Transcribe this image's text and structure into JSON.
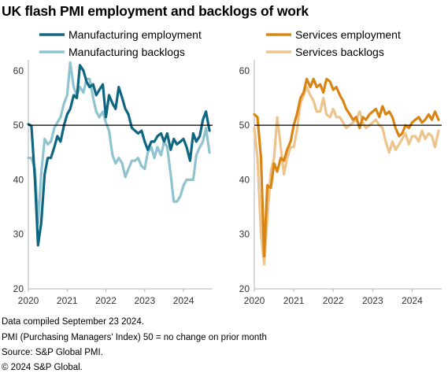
{
  "title": "UK flash PMI employment  and backlogs  of work",
  "footer": {
    "line1": "Data compiled September 23 2024.",
    "line2": "PMI (Purchasing Managers' Index) 50 = no change on prior month",
    "line3": "Source: S&P Global PMI.",
    "line4": "© 2024 S&P Global."
  },
  "colors": {
    "manufacturing_employment": "#0f6680",
    "manufacturing_backlogs": "#8fc3cf",
    "services_employment": "#d98514",
    "services_backlogs": "#ecc48c",
    "reference_line": "#000000",
    "axis": "#b3b3b3"
  },
  "chart_data": [
    {
      "type": "line",
      "ylim": [
        20,
        62
      ],
      "yticks": [
        "20",
        "30",
        "40",
        "50",
        "60"
      ],
      "xlabels": [
        "2020",
        "2021",
        "2022",
        "2023",
        "2024"
      ],
      "xlim": [
        2020,
        2024.75
      ],
      "reference_line": 50,
      "legend": "top",
      "series": [
        {
          "name": "Manufacturing employment",
          "color": "#0f6680",
          "x": [
            2020.0,
            2020.08,
            2020.17,
            2020.25,
            2020.33,
            2020.42,
            2020.5,
            2020.58,
            2020.67,
            2020.75,
            2020.83,
            2020.92,
            2021.0,
            2021.08,
            2021.17,
            2021.25,
            2021.33,
            2021.42,
            2021.5,
            2021.58,
            2021.67,
            2021.75,
            2021.83,
            2021.92,
            2022.0,
            2022.08,
            2022.17,
            2022.25,
            2022.33,
            2022.42,
            2022.5,
            2022.58,
            2022.67,
            2022.75,
            2022.83,
            2022.92,
            2023.0,
            2023.08,
            2023.17,
            2023.25,
            2023.33,
            2023.42,
            2023.5,
            2023.58,
            2023.67,
            2023.75,
            2023.83,
            2023.92,
            2024.0,
            2024.08,
            2024.17,
            2024.25,
            2024.33,
            2024.42,
            2024.5,
            2024.58,
            2024.67
          ],
          "values": [
            50.2,
            49.9,
            40,
            28,
            32,
            41,
            44,
            44,
            46,
            48,
            47,
            50,
            52,
            53,
            55.5,
            55,
            61,
            60,
            58,
            57,
            57.5,
            55.5,
            56.5,
            57.5,
            51.5,
            55.5,
            54,
            53,
            57,
            55,
            53,
            52,
            49.5,
            49,
            48.5,
            49,
            47,
            45.5,
            47,
            47,
            48,
            48.5,
            47,
            48.5,
            45.5,
            47.5,
            46.5,
            47,
            47.5,
            46,
            43.5,
            48.5,
            47,
            48,
            51,
            52.5,
            49
          ]
        },
        {
          "name": "Manufacturing backlogs",
          "color": "#8fc3cf",
          "x": [
            2020.0,
            2020.08,
            2020.17,
            2020.25,
            2020.33,
            2020.42,
            2020.5,
            2020.58,
            2020.67,
            2020.75,
            2020.83,
            2020.92,
            2021.0,
            2021.08,
            2021.17,
            2021.25,
            2021.33,
            2021.42,
            2021.5,
            2021.58,
            2021.67,
            2021.75,
            2021.83,
            2021.92,
            2022.0,
            2022.08,
            2022.17,
            2022.25,
            2022.33,
            2022.42,
            2022.5,
            2022.58,
            2022.67,
            2022.75,
            2022.83,
            2022.92,
            2023.0,
            2023.08,
            2023.17,
            2023.25,
            2023.33,
            2023.42,
            2023.5,
            2023.58,
            2023.67,
            2023.75,
            2023.83,
            2023.92,
            2024.0,
            2024.08,
            2024.17,
            2024.25,
            2024.33,
            2024.42,
            2024.5,
            2024.58,
            2024.67
          ],
          "values": [
            44,
            44,
            42,
            32,
            41,
            47.5,
            46.5,
            47,
            49.5,
            50.5,
            51.5,
            54,
            55.5,
            61.5,
            57,
            55.5,
            57,
            56,
            58.5,
            58.5,
            55,
            52.5,
            51.5,
            52.5,
            50.5,
            49,
            44.5,
            43,
            44,
            43,
            40.5,
            42,
            43.5,
            43.5,
            44,
            42.5,
            42,
            45,
            46,
            44,
            46,
            44.5,
            47,
            46,
            41,
            36,
            36,
            37,
            39,
            40,
            40,
            40,
            44.5,
            46,
            47,
            49.5,
            45
          ]
        }
      ]
    },
    {
      "type": "line",
      "ylim": [
        20,
        62
      ],
      "yticks": [
        "20",
        "30",
        "40",
        "50",
        "60"
      ],
      "xlabels": [
        "2020",
        "2021",
        "2022",
        "2023",
        "2024"
      ],
      "xlim": [
        2020,
        2024.75
      ],
      "reference_line": 50,
      "legend": "top",
      "series": [
        {
          "name": "Services employment",
          "color": "#d98514",
          "x": [
            2020.0,
            2020.08,
            2020.17,
            2020.25,
            2020.33,
            2020.42,
            2020.5,
            2020.58,
            2020.67,
            2020.75,
            2020.83,
            2020.92,
            2021.0,
            2021.08,
            2021.17,
            2021.25,
            2021.33,
            2021.42,
            2021.5,
            2021.58,
            2021.67,
            2021.75,
            2021.83,
            2021.92,
            2022.0,
            2022.08,
            2022.17,
            2022.25,
            2022.33,
            2022.42,
            2022.5,
            2022.58,
            2022.67,
            2022.75,
            2022.83,
            2022.92,
            2023.0,
            2023.08,
            2023.17,
            2023.25,
            2023.33,
            2023.42,
            2023.5,
            2023.58,
            2023.67,
            2023.75,
            2023.83,
            2023.92,
            2024.0,
            2024.08,
            2024.17,
            2024.25,
            2024.33,
            2024.42,
            2024.5,
            2024.58,
            2024.67
          ],
          "values": [
            52,
            51.5,
            44,
            26,
            39,
            38.5,
            43,
            41.5,
            44,
            43.5,
            45.5,
            47,
            50,
            52,
            55,
            56,
            58.5,
            57,
            58.5,
            57,
            57.5,
            56,
            58.5,
            58,
            56.5,
            57,
            55.5,
            54.5,
            53,
            52,
            51,
            51.5,
            49.5,
            51.5,
            51,
            52,
            52.5,
            53,
            51.5,
            53.5,
            52,
            52.5,
            51.5,
            49.5,
            48,
            48.5,
            50,
            49.5,
            50.5,
            51,
            51.5,
            50.5,
            51,
            52,
            51,
            52.5,
            51
          ]
        },
        {
          "name": "Services backlogs",
          "color": "#ecc48c",
          "x": [
            2020.0,
            2020.08,
            2020.17,
            2020.25,
            2020.33,
            2020.42,
            2020.5,
            2020.58,
            2020.67,
            2020.75,
            2020.83,
            2020.92,
            2021.0,
            2021.08,
            2021.17,
            2021.25,
            2021.33,
            2021.42,
            2021.5,
            2021.58,
            2021.67,
            2021.75,
            2021.83,
            2021.92,
            2022.0,
            2022.08,
            2022.17,
            2022.25,
            2022.33,
            2022.42,
            2022.5,
            2022.58,
            2022.67,
            2022.75,
            2022.83,
            2022.92,
            2023.0,
            2023.08,
            2023.17,
            2023.25,
            2023.33,
            2023.42,
            2023.5,
            2023.58,
            2023.67,
            2023.75,
            2023.83,
            2023.92,
            2024.0,
            2024.08,
            2024.17,
            2024.25,
            2024.33,
            2024.42,
            2024.5,
            2024.58,
            2024.67
          ],
          "values": [
            49.5,
            44,
            30,
            24.5,
            33,
            41.5,
            44,
            51.5,
            46,
            41,
            44,
            46,
            46,
            49,
            54,
            55.5,
            57,
            55.5,
            54.5,
            52.5,
            52.5,
            55,
            52,
            51.5,
            53,
            51.5,
            51.5,
            50.5,
            49.5,
            50,
            50.5,
            51,
            52.5,
            50.5,
            49.5,
            50,
            50.5,
            51,
            50,
            49.5,
            47,
            45,
            47,
            45.5,
            46.5,
            47.5,
            48.5,
            46.5,
            48,
            48,
            47,
            49,
            47.5,
            48.5,
            48,
            46,
            49
          ]
        }
      ]
    }
  ]
}
